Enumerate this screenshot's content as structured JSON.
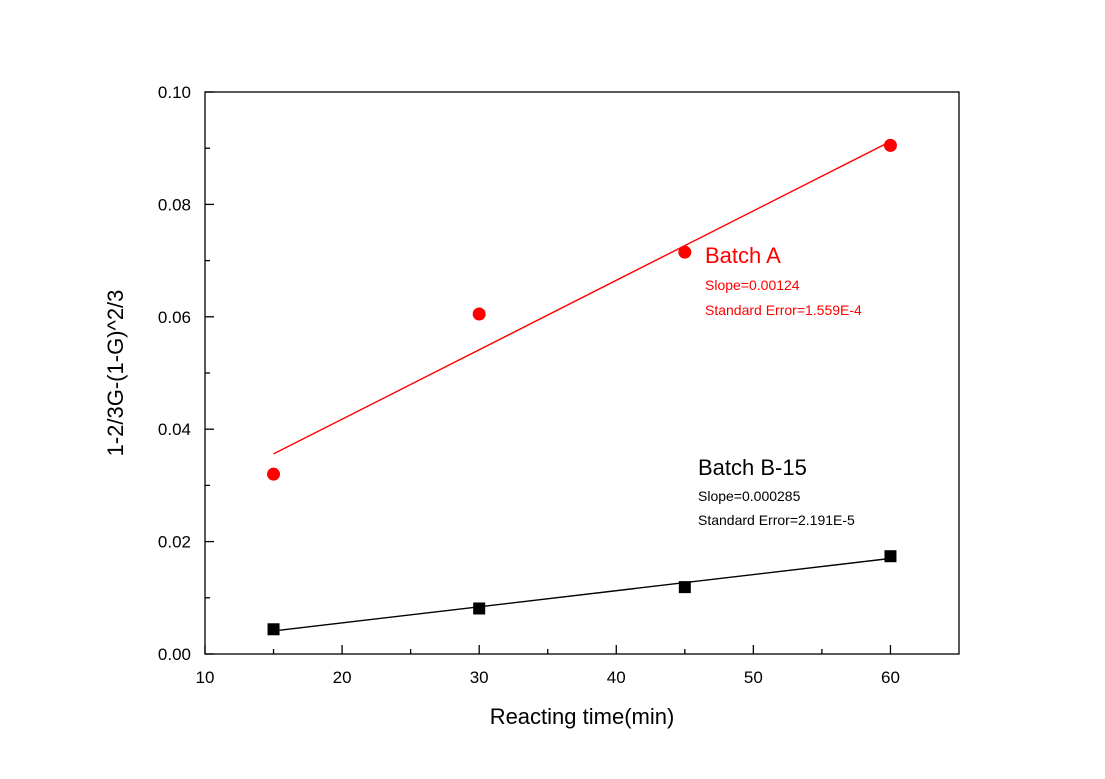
{
  "chart_data": {
    "type": "scatter",
    "xlabel": "Reacting time(min)",
    "ylabel": "1-2/3G-(1-G)^2/3",
    "xlim": [
      10,
      65
    ],
    "ylim": [
      0,
      0.1
    ],
    "xticks": [
      "10",
      "20",
      "30",
      "40",
      "50",
      "60"
    ],
    "yticks": [
      "0.00",
      "0.02",
      "0.04",
      "0.06",
      "0.08",
      "0.10"
    ],
    "grid": false,
    "series": [
      {
        "name": "Batch A",
        "color": "#ff0000",
        "marker": "circle",
        "x": [
          15,
          30,
          45,
          60
        ],
        "y": [
          0.032,
          0.0605,
          0.0715,
          0.0905
        ],
        "fit": {
          "x": [
            15,
            60
          ],
          "y": [
            0.0356,
            0.0912
          ]
        },
        "slope_label": "Slope=0.00124",
        "error_label": "Standard Error=1.559E-4"
      },
      {
        "name": "Batch B-15",
        "color": "#000000",
        "marker": "square",
        "x": [
          15,
          30,
          45,
          60
        ],
        "y": [
          0.0044,
          0.0081,
          0.0119,
          0.0174
        ],
        "fit": {
          "x": [
            15,
            60
          ],
          "y": [
            0.0041,
            0.017
          ]
        },
        "slope_label": "Slope=0.000285",
        "error_label": "Standard Error=2.191E-5"
      }
    ]
  }
}
